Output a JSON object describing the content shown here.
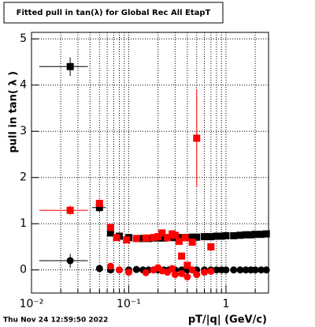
{
  "chart_data": {
    "type": "scatter",
    "title": "Fitted pull in tan(λ) for Global Rec All EtapT",
    "ylabel": "pull in tan( λ )",
    "xlabel": "pT/|q| (GeV/c)",
    "footer": "Thu Nov 24 12:59:50 2022",
    "log_x": true,
    "grid": true,
    "xlim": [
      0.01,
      2.74
    ],
    "ylim": [
      -0.5,
      5.14
    ],
    "xticks": [
      {
        "value": 0.01,
        "label": "10⁻²"
      },
      {
        "value": 0.1,
        "label": "10⁻¹"
      },
      1
    ],
    "xminorticks": [
      0.02,
      0.03,
      0.04,
      0.05,
      0.06,
      0.07,
      0.08,
      0.09,
      0.2,
      0.3,
      0.4,
      0.5,
      0.6,
      0.7,
      0.8,
      0.9,
      2
    ],
    "yticks": [
      0,
      1,
      2,
      3,
      4,
      5
    ],
    "series": [
      {
        "color": "#000000",
        "marker": "square",
        "x": [
          0.025,
          0.05,
          0.065,
          0.08,
          0.1,
          0.12,
          0.14,
          0.16,
          0.18,
          0.2,
          0.23,
          0.26,
          0.3,
          0.35,
          0.4,
          0.45,
          0.5,
          0.6,
          0.7,
          0.8,
          0.9,
          1.0,
          1.2,
          1.4,
          1.6,
          1.8,
          2.0,
          2.3,
          2.6
        ],
        "values": [
          4.4,
          1.35,
          0.8,
          0.73,
          0.7,
          0.68,
          0.68,
          0.68,
          0.69,
          0.69,
          0.69,
          0.7,
          0.7,
          0.7,
          0.7,
          0.71,
          0.71,
          0.72,
          0.72,
          0.73,
          0.73,
          0.74,
          0.74,
          0.75,
          0.76,
          0.76,
          0.77,
          0.77,
          0.78
        ],
        "xerr": [
          0.013,
          0.008,
          null,
          null,
          null,
          null,
          null,
          null,
          null,
          null,
          null,
          null,
          null,
          null,
          null,
          null,
          null,
          null,
          null,
          null,
          null,
          null,
          null,
          null,
          null,
          null,
          null,
          null,
          null
        ],
        "yerr": [
          0.2,
          0.1,
          null,
          null,
          null,
          null,
          null,
          null,
          null,
          null,
          null,
          null,
          null,
          null,
          null,
          null,
          null,
          null,
          null,
          null,
          null,
          null,
          null,
          null,
          null,
          null,
          null,
          null,
          null
        ]
      },
      {
        "color": "#000000",
        "marker": "circle",
        "x": [
          0.025,
          0.05,
          0.065,
          0.08,
          0.1,
          0.12,
          0.14,
          0.16,
          0.18,
          0.2,
          0.23,
          0.26,
          0.3,
          0.35,
          0.4,
          0.45,
          0.5,
          0.6,
          0.7,
          0.8,
          0.9,
          1.0,
          1.2,
          1.4,
          1.6,
          1.8,
          2.0,
          2.3,
          2.6
        ],
        "values": [
          0.2,
          0.03,
          0.0,
          0.0,
          0.0,
          0.01,
          0.0,
          0.0,
          0.0,
          0.0,
          0.0,
          0.0,
          0.0,
          0.0,
          0.0,
          0.0,
          0.0,
          0.0,
          0.0,
          0.0,
          0.0,
          0.0,
          0.0,
          0.0,
          0.0,
          0.0,
          0.0,
          0.0,
          0.0
        ],
        "xerr": [
          0.013,
          null,
          null,
          null,
          null,
          null,
          null,
          null,
          null,
          null,
          null,
          null,
          null,
          null,
          null,
          null,
          null,
          null,
          null,
          null,
          null,
          null,
          null,
          null,
          null,
          null,
          null,
          null,
          null
        ],
        "yerr": [
          0.15,
          null,
          null,
          null,
          null,
          null,
          null,
          null,
          null,
          null,
          null,
          null,
          null,
          null,
          null,
          null,
          null,
          null,
          null,
          null,
          null,
          null,
          null,
          null,
          null,
          null,
          null,
          null,
          null
        ]
      },
      {
        "color": "#ff0000",
        "marker": "square",
        "x": [
          0.025,
          0.05,
          0.065,
          0.075,
          0.095,
          0.12,
          0.15,
          0.18,
          0.2,
          0.22,
          0.25,
          0.28,
          0.3,
          0.33,
          0.35,
          0.38,
          0.4,
          0.45,
          0.5,
          0.7
        ],
        "values": [
          1.29,
          1.44,
          0.92,
          0.7,
          0.65,
          0.68,
          0.69,
          0.7,
          0.72,
          0.8,
          0.7,
          0.78,
          0.75,
          0.62,
          0.3,
          0.7,
          0.1,
          0.6,
          2.85,
          0.5
        ],
        "xerr": [
          0.013,
          null,
          null,
          null,
          null,
          null,
          null,
          null,
          null,
          null,
          null,
          null,
          null,
          null,
          null,
          null,
          null,
          null,
          null,
          null
        ],
        "yerr": [
          0.1,
          0.08,
          null,
          null,
          null,
          null,
          null,
          null,
          null,
          null,
          null,
          null,
          null,
          null,
          null,
          null,
          null,
          null,
          1.05,
          null
        ]
      },
      {
        "color": "#ff0000",
        "marker": "circle",
        "x": [
          0.065,
          0.08,
          0.1,
          0.15,
          0.18,
          0.2,
          0.22,
          0.25,
          0.28,
          0.3,
          0.35,
          0.4,
          0.45,
          0.5,
          0.6,
          0.7
        ],
        "values": [
          0.08,
          0.0,
          -0.05,
          -0.06,
          0.0,
          0.05,
          -0.02,
          -0.05,
          0.03,
          -0.1,
          -0.08,
          -0.15,
          0.0,
          -0.1,
          -0.05,
          -0.03
        ],
        "xerr": [
          null,
          null,
          null,
          null,
          null,
          null,
          null,
          null,
          null,
          null,
          null,
          null,
          null,
          null,
          null,
          null
        ],
        "yerr": [
          null,
          null,
          null,
          null,
          null,
          null,
          null,
          null,
          null,
          null,
          null,
          null,
          null,
          null,
          null,
          null
        ]
      }
    ]
  }
}
